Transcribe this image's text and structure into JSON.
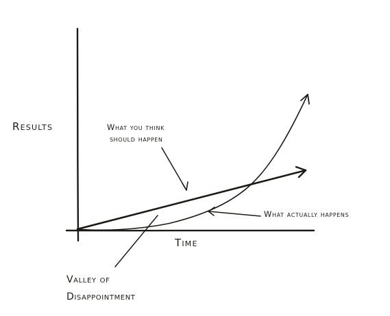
{
  "diagram": {
    "y_axis_label": "Results",
    "x_axis_label": "Time",
    "annotations": {
      "expected": {
        "line1": "What you think",
        "line2": "should happen"
      },
      "actual": "What actually happens",
      "valley": {
        "line1": "Valley of",
        "line2": "Disappointment"
      }
    },
    "colors": {
      "ink": "#1c1a16",
      "paper": "#ffffff"
    }
  }
}
